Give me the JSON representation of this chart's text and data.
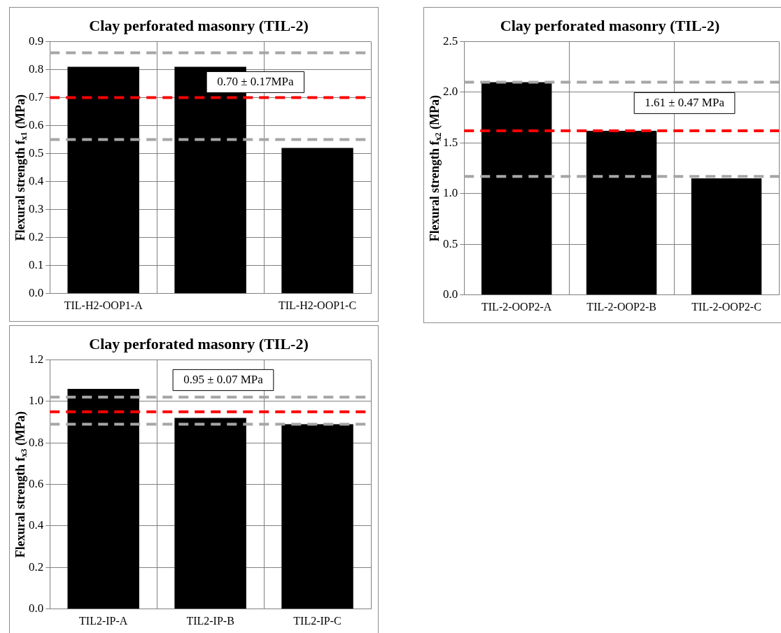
{
  "chart_data": [
    {
      "type": "bar",
      "title": "Clay perforated masonry (TIL-2)",
      "ylabel": "Flexural strength f$_{x1}$ (MPa)",
      "categories": [
        "TIL-H2-OOP1-A",
        null,
        "TIL-H2-OOP1-C"
      ],
      "values": [
        0.81,
        0.81,
        0.52
      ],
      "color": "#000000",
      "ylim": [
        0,
        0.9
      ],
      "yticks": [
        {
          "value": 0,
          "label": "0.0"
        },
        0.1,
        0.2,
        0.3,
        0.4,
        0.5,
        0.6,
        0.7,
        0.8,
        0.9
      ],
      "grid": true,
      "legend": false,
      "ref_lines": [
        {
          "axis": "y",
          "value": 0.86,
          "color": "#a6a6a6",
          "line_style": "dashed"
        },
        {
          "axis": "y",
          "value": 0.7,
          "color": "#ff0000",
          "line_style": "dashed"
        },
        {
          "axis": "y",
          "value": 0.55,
          "color": "#a6a6a6",
          "line_style": "dashed"
        }
      ],
      "annotations": [
        "0.70 ± 0.17MPa"
      ]
    },
    {
      "type": "bar",
      "title": "Clay perforated masonry (TIL-2)",
      "ylabel": "Flexural strength f$_{x2}$ (MPa)",
      "categories": [
        "TIL-2-OOP2-A",
        "TIL-2-OOP2-B",
        "TIL-2-OOP2-C"
      ],
      "values": [
        2.1,
        1.62,
        1.15
      ],
      "color": "#000000",
      "ylim": [
        0,
        2.5
      ],
      "yticks": [
        {
          "value": 0,
          "label": "0.0"
        },
        0.5,
        {
          "value": 1,
          "label": "1.0"
        },
        1.5,
        {
          "value": 2,
          "label": "2.0"
        },
        2.5
      ],
      "grid": true,
      "legend": false,
      "ref_lines": [
        {
          "axis": "y",
          "value": 2.1,
          "color": "#a6a6a6",
          "line_style": "dashed"
        },
        {
          "axis": "y",
          "value": 1.62,
          "color": "#ff0000",
          "line_style": "dashed"
        },
        {
          "axis": "y",
          "value": 1.17,
          "color": "#a6a6a6",
          "line_style": "dashed"
        }
      ],
      "annotations": [
        "1.61 ± 0.47 MPa"
      ]
    },
    {
      "type": "bar",
      "title": "Clay perforated masonry (TIL-2)",
      "ylabel": "Flexural strength f$_{x3}$ (MPa)",
      "categories": [
        "TIL2-IP-A",
        "TIL2-IP-B",
        "TIL2-IP-C"
      ],
      "values": [
        1.06,
        0.92,
        0.89
      ],
      "color": "#000000",
      "ylim": [
        0,
        1.2
      ],
      "yticks": [
        {
          "value": 0,
          "label": "0.0"
        },
        0.2,
        0.4,
        0.6,
        0.8,
        {
          "value": 1,
          "label": "1.0"
        },
        1.2
      ],
      "grid": true,
      "legend": false,
      "ref_lines": [
        {
          "axis": "y",
          "value": 1.02,
          "color": "#a6a6a6",
          "line_style": "dashed"
        },
        {
          "axis": "y",
          "value": 0.95,
          "color": "#ff0000",
          "line_style": "dashed"
        },
        {
          "axis": "y",
          "value": 0.89,
          "color": "#a6a6a6",
          "line_style": "dashed"
        }
      ],
      "annotations": [
        "0.95 ± 0.07 MPa"
      ]
    }
  ]
}
